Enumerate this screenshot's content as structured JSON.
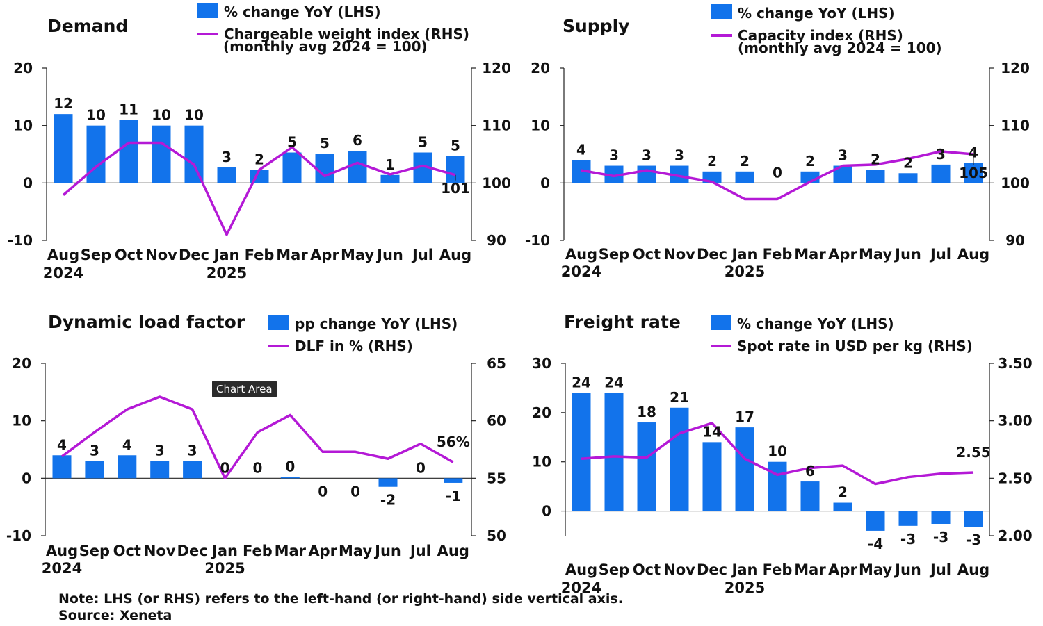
{
  "colors": {
    "bar": "#1273eb",
    "line": "#b419d6",
    "axis": "#222222",
    "text": "#111111"
  },
  "note": "Note: LHS (or RHS) refers to the left-hand (or right-hand) side vertical axis.",
  "source": "Source: Xeneta",
  "tooltip": "Chart Area",
  "chart_data": [
    {
      "id": "demand",
      "type": "bar+line",
      "title": "Demand",
      "legend": {
        "bar": "% change YoY (LHS)",
        "line": "Chargeable weight index (RHS)",
        "line2": "(monthly avg 2024 = 100)"
      },
      "categories": [
        "Aug",
        "Sep",
        "Oct",
        "Nov",
        "Dec",
        "Jan",
        "Feb",
        "Mar",
        "Apr",
        "May",
        "Jun",
        "Jul",
        "Aug"
      ],
      "year_labels": [
        {
          "index": 0,
          "text": "2024"
        },
        {
          "index": 5,
          "text": "2025"
        }
      ],
      "lhs": {
        "min": -10,
        "max": 20,
        "ticks": [
          "-10",
          "0",
          "10",
          "20"
        ]
      },
      "rhs": {
        "min": 90,
        "max": 120,
        "ticks": [
          "90",
          "100",
          "110",
          "120"
        ]
      },
      "bars": [
        12,
        10,
        11,
        10,
        10,
        2.7,
        2.3,
        5.3,
        5.1,
        5.6,
        1.4,
        5.3,
        4.7
      ],
      "bar_labels": [
        "12",
        "10",
        "11",
        "10",
        "10",
        "3",
        "2",
        "5",
        "5",
        "6",
        "1",
        "5",
        "5"
      ],
      "line": [
        97.9,
        102.8,
        107,
        107,
        103.2,
        91,
        102.3,
        106.2,
        101.2,
        103.5,
        101.5,
        103,
        101.4
      ],
      "line_end_label": "101"
    },
    {
      "id": "supply",
      "type": "bar+line",
      "title": "Supply",
      "legend": {
        "bar": "% change YoY (LHS)",
        "line": "Capacity index (RHS)",
        "line2": "(monthly avg 2024 = 100)"
      },
      "categories": [
        "Aug",
        "Sep",
        "Oct",
        "Nov",
        "Dec",
        "Jan",
        "Feb",
        "Mar",
        "Apr",
        "May",
        "Jun",
        "Jul",
        "Aug"
      ],
      "year_labels": [
        {
          "index": 0,
          "text": "2024"
        },
        {
          "index": 5,
          "text": "2025"
        }
      ],
      "lhs": {
        "min": -10,
        "max": 20,
        "ticks": [
          "-10",
          "0",
          "10",
          "20"
        ]
      },
      "rhs": {
        "min": 90,
        "max": 120,
        "ticks": [
          "90",
          "100",
          "110",
          "120"
        ]
      },
      "bars": [
        4,
        3,
        3,
        3,
        2,
        2,
        0,
        2,
        3,
        2.3,
        1.7,
        3.2,
        3.5
      ],
      "bar_labels": [
        "4",
        "3",
        "3",
        "3",
        "2",
        "2",
        "0",
        "2",
        "3",
        "2",
        "2",
        "3",
        "4"
      ],
      "line": [
        102.2,
        101.2,
        102.2,
        101.2,
        100.2,
        97.2,
        97.2,
        100.2,
        103,
        103.2,
        104.2,
        105.5,
        105
      ],
      "line_end_label": "105"
    },
    {
      "id": "dlf",
      "type": "bar+line",
      "title": "Dynamic load factor",
      "legend": {
        "bar": "pp change YoY (LHS)",
        "line": "DLF in % (RHS)"
      },
      "categories": [
        "Aug",
        "Sep",
        "Oct",
        "Nov",
        "Dec",
        "Jan",
        "Feb",
        "Mar",
        "Apr",
        "May",
        "Jun",
        "Jul",
        "Aug"
      ],
      "year_labels": [
        {
          "index": 0,
          "text": "2024"
        },
        {
          "index": 5,
          "text": "2025"
        }
      ],
      "lhs": {
        "min": -10,
        "max": 20,
        "ticks": [
          "-10",
          "0",
          "10",
          "20"
        ]
      },
      "rhs": {
        "min": 50,
        "max": 65,
        "ticks": [
          "50",
          "55",
          "60",
          "65"
        ]
      },
      "bars": [
        4,
        3,
        4,
        3,
        3,
        0,
        0,
        0.2,
        0,
        0,
        -1.5,
        0,
        -0.8
      ],
      "bar_labels": [
        "4",
        "3",
        "4",
        "3",
        "3",
        "0",
        "0",
        "0",
        "0",
        "0",
        "-2",
        "0",
        "-1"
      ],
      "bar_label_below": [
        false,
        false,
        false,
        false,
        false,
        false,
        false,
        false,
        true,
        true,
        true,
        false,
        true
      ],
      "line": [
        56.9,
        59,
        61,
        62.1,
        61,
        55,
        59,
        60.5,
        57.3,
        57.3,
        56.7,
        58,
        56.4
      ],
      "line_end_label": "56%"
    },
    {
      "id": "freight",
      "type": "bar+line",
      "title": "Freight rate",
      "legend": {
        "bar": "% change YoY (LHS)",
        "line": "Spot rate in USD per kg (RHS)"
      },
      "categories": [
        "Aug",
        "Sep",
        "Oct",
        "Nov",
        "Dec",
        "Jan",
        "Feb",
        "Mar",
        "Apr",
        "May",
        "Jun",
        "Jul",
        "Aug"
      ],
      "year_labels": [
        {
          "index": 0,
          "text": "2024"
        },
        {
          "index": 5,
          "text": "2025"
        }
      ],
      "lhs": {
        "min": -5,
        "max": 30,
        "ticks": [
          "0",
          "10",
          "20",
          "30"
        ]
      },
      "rhs": {
        "min": 2.0,
        "max": 3.5,
        "ticks": [
          "2.00",
          "2.50",
          "3.00",
          "3.50"
        ]
      },
      "bars": [
        24,
        24,
        18,
        21,
        14,
        17,
        10,
        6,
        1.7,
        -4,
        -3,
        -2.6,
        -3.2
      ],
      "bar_labels": [
        "24",
        "24",
        "18",
        "21",
        "14",
        "17",
        "10",
        "6",
        "2",
        "-4",
        "-3",
        "-3",
        "-3"
      ],
      "line": [
        2.67,
        2.69,
        2.68,
        2.89,
        2.98,
        2.67,
        2.53,
        2.59,
        2.61,
        2.45,
        2.51,
        2.54,
        2.55
      ],
      "line_end_label": "2.55"
    }
  ]
}
